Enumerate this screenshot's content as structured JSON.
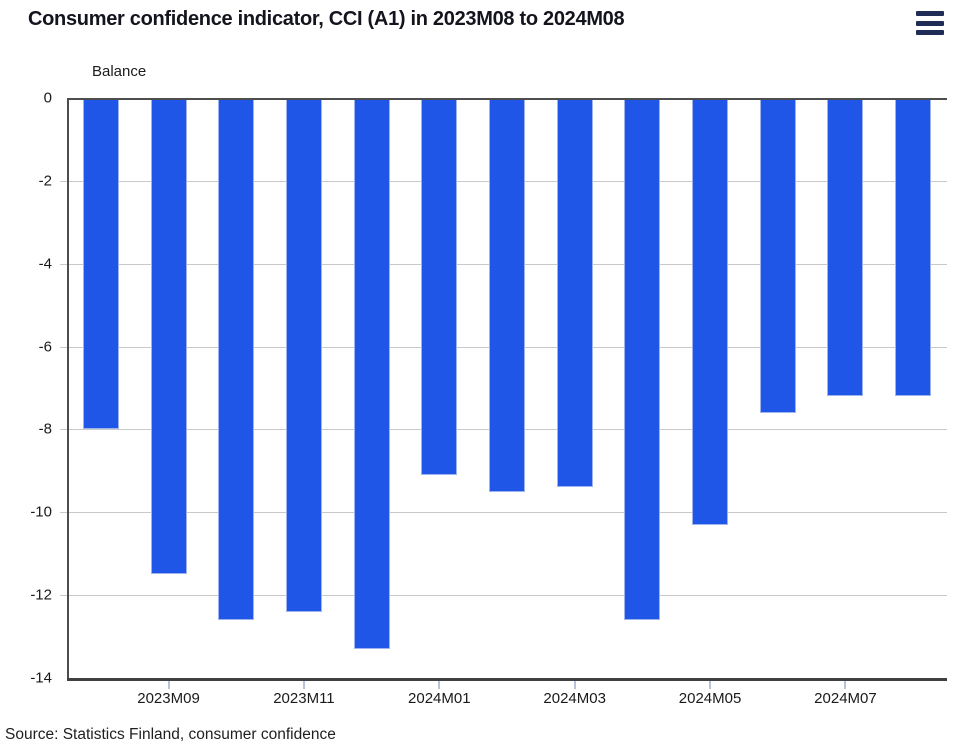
{
  "header": {
    "title": "Consumer confidence indicator, CCI (A1) in 2023M08 to 2024M08",
    "menu_icon": "hamburger-menu-icon"
  },
  "chart_data": {
    "type": "bar",
    "title": "Consumer confidence indicator, CCI (A1) in 2023M08 to 2024M08",
    "ylabel": "Balance",
    "xlabel": "",
    "categories": [
      "2023M08",
      "2023M09",
      "2023M10",
      "2023M11",
      "2023M12",
      "2024M01",
      "2024M02",
      "2024M03",
      "2024M04",
      "2024M05",
      "2024M06",
      "2024M07",
      "2024M08"
    ],
    "values": [
      -8.0,
      -11.5,
      -12.6,
      -12.4,
      -13.3,
      -9.1,
      -9.5,
      -9.4,
      -12.6,
      -10.3,
      -7.6,
      -7.2,
      -7.2
    ],
    "x_tick_labels": [
      "2023M09",
      "2023M11",
      "2024M01",
      "2024M03",
      "2024M05",
      "2024M07"
    ],
    "labeled_indices": [
      1,
      3,
      5,
      7,
      9,
      11
    ],
    "ylim": [
      -14,
      0
    ],
    "yticks": [
      0,
      -2,
      -4,
      -6,
      -8,
      -10,
      -12,
      -14
    ],
    "grid": true,
    "legend_position": "none",
    "bar_color": "#2056E8"
  },
  "colors": {
    "bar": "#2056E8",
    "menu_icon": "#1F2C55",
    "grid": "#C9C9C9",
    "axis": "#4D4D4D"
  },
  "footer": {
    "source": "Source: Statistics Finland, consumer confidence"
  }
}
